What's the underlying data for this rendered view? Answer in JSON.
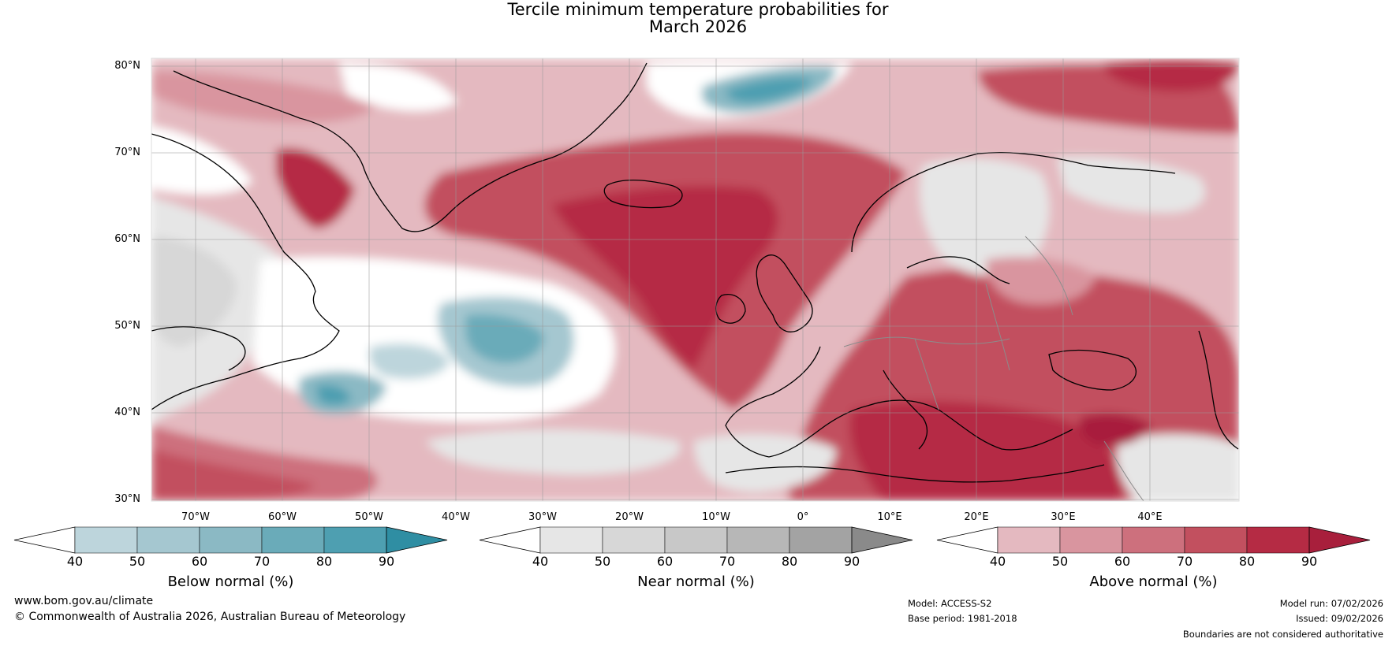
{
  "title": {
    "line1": "Tercile minimum temperature probabilities for",
    "line2": "March 2026"
  },
  "map": {
    "lat_labels": [
      "80°N",
      "70°N",
      "60°N",
      "50°N",
      "40°N",
      "30°N"
    ],
    "lon_labels": [
      "70°W",
      "60°W",
      "50°W",
      "40°W",
      "30°W",
      "20°W",
      "10°W",
      "0°",
      "10°E",
      "20°E",
      "30°E",
      "40°E"
    ],
    "colors": {
      "above": [
        "#e4b9c0",
        "#d9959f",
        "#cd707d",
        "#c2505f",
        "#b52b44",
        "#a81f3c"
      ],
      "below": [
        "#bdd5dc",
        "#a5c7d0",
        "#8bb9c4",
        "#6aabb9",
        "#4e9fb1",
        "#2f8ea3"
      ],
      "near": [
        "#e6e6e6",
        "#d7d7d7",
        "#c8c8c8",
        "#b7b7b7",
        "#a3a3a3",
        "#8a8a8a"
      ],
      "ocean_white": "#ffffff",
      "coastline": "#000000",
      "borders": "#8c8c8c",
      "gridlines": "#9a9a9a"
    }
  },
  "colorbars": [
    {
      "id": "below",
      "label": "Below normal (%)",
      "ticks": [
        "40",
        "50",
        "60",
        "70",
        "80",
        "90"
      ]
    },
    {
      "id": "near",
      "label": "Near normal (%)",
      "ticks": [
        "40",
        "50",
        "60",
        "70",
        "80",
        "90"
      ]
    },
    {
      "id": "above",
      "label": "Above normal (%)",
      "ticks": [
        "40",
        "50",
        "60",
        "70",
        "80",
        "90"
      ]
    }
  ],
  "footer": {
    "website": "www.bom.gov.au/climate",
    "copyright": "© Commonwealth of Australia 2026, Australian Bureau of Meteorology",
    "model": "Model: ACCESS-S2",
    "base_period": "Base period: 1981-2018",
    "model_run": "Model run: 07/02/2026",
    "issued": "Issued: 09/02/2026",
    "disclaimer": "Boundaries are not considered authoritative"
  }
}
